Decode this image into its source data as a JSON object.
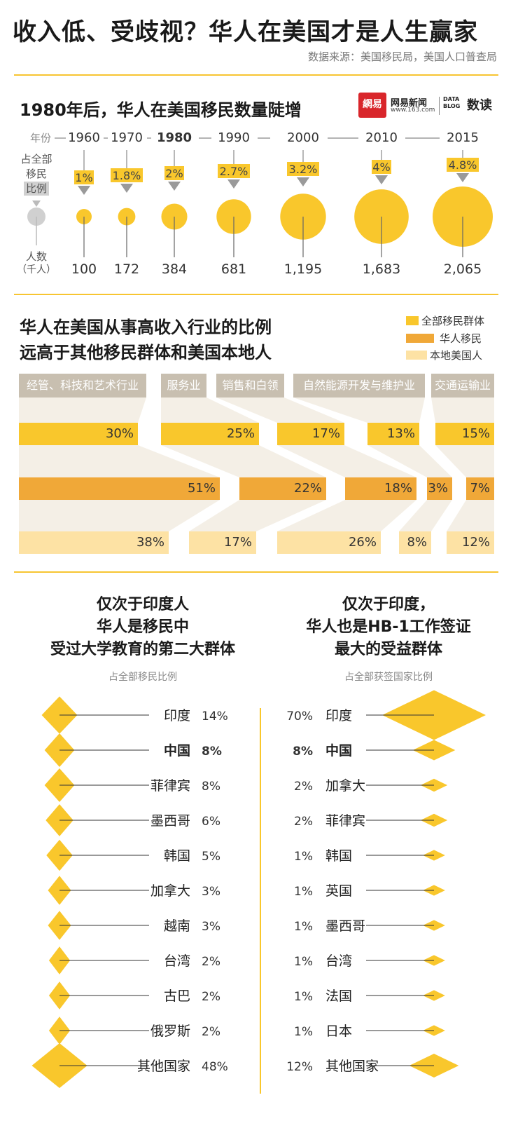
{
  "title": "收入低、受歧视？华人在美国才是人生赢家",
  "source": "数据来源：美国移民局，美国人口普查局",
  "logo": {
    "badge": "網易",
    "name": "网易新闻",
    "url": "www.163.com",
    "datablog": "DATA BLOG",
    "brand": "数读"
  },
  "colors": {
    "yellow": "#f9c72c",
    "orange": "#f0a838",
    "light": "#fde2a4",
    "gray": "#d0d0d0",
    "category_bg": "#c8bfb0",
    "flow_bg": "#f4efe6"
  },
  "section1": {
    "title": "1980年后，华人在美国移民数量陡增",
    "label_year": "年份",
    "label_share": [
      "占全部",
      "移民",
      "比例"
    ],
    "label_count": [
      "人数",
      "（千人）"
    ]
  },
  "section2": {
    "title_lines": [
      "华人在美国从事高收入行业的比例",
      "远高于其他移民群体和美国本地人"
    ],
    "legend": [
      "全部移民群体",
      "华人移民",
      "本地美国人"
    ]
  },
  "section3": {
    "left": {
      "title_lines": [
        "仅次于印度人",
        "华人是移民中",
        "受过大学教育的第二大群体"
      ],
      "note": "占全部移民比例"
    },
    "right": {
      "title_lines": [
        "仅次于印度，",
        "华人也是HB-1工作签证",
        "最大的受益群体"
      ],
      "note": "占全部获签国家比例"
    }
  },
  "chart_data": [
    {
      "type": "bubble",
      "title": "1980年后，华人在美国移民数量陡增",
      "x": [
        "1960",
        "1970",
        "1980",
        "1990",
        "2000",
        "2010",
        "2015"
      ],
      "x_display": [
        "1960",
        "1970",
        "1980",
        "1990",
        "2000",
        "2010",
        "2015"
      ],
      "share_percent": [
        1,
        1.8,
        2,
        2.7,
        3.2,
        4,
        4.8
      ],
      "share_labels": [
        "1%",
        "1.8%",
        "2%",
        "2.7%",
        "3.2%",
        "4%",
        "4.8%"
      ],
      "population_thousands": [
        100,
        172,
        384,
        681,
        1195,
        1683,
        2065
      ],
      "population_labels": [
        "100",
        "172",
        "384",
        "681",
        "1,195",
        "1,683",
        "2,065"
      ],
      "highlight": "1980"
    },
    {
      "type": "bar",
      "title": "华人在美国从事高收入行业的比例远高于其他移民群体和美国本地人",
      "categories": [
        "经管、科技和艺术行业",
        "服务业",
        "销售和白领",
        "自然能源开发与维护业",
        "交通运输业"
      ],
      "series": [
        {
          "name": "全部移民群体",
          "values": [
            30,
            25,
            17,
            13,
            15
          ],
          "labels": [
            "30%",
            "25%",
            "17%",
            "13%",
            "15%"
          ]
        },
        {
          "name": "华人移民",
          "values": [
            51,
            22,
            18,
            3,
            7
          ],
          "labels": [
            "51%",
            "22%",
            "18%",
            "3%",
            "7%"
          ]
        },
        {
          "name": "本地美国人",
          "values": [
            38,
            17,
            26,
            8,
            12
          ],
          "labels": [
            "38%",
            "17%",
            "26%",
            "8%",
            "12%"
          ]
        }
      ]
    },
    {
      "type": "bar",
      "title": "仅次于印度人 华人是移民中 受过大学教育的第二大群体",
      "subtitle": "占全部移民比例",
      "categories": [
        "印度",
        "中国",
        "菲律宾",
        "墨西哥",
        "韩国",
        "加拿大",
        "越南",
        "台湾",
        "古巴",
        "俄罗斯",
        "其他国家"
      ],
      "values": [
        14,
        8,
        8,
        6,
        5,
        3,
        3,
        2,
        2,
        2,
        48
      ],
      "labels": [
        "14%",
        "8%",
        "8%",
        "6%",
        "5%",
        "3%",
        "3%",
        "2%",
        "2%",
        "2%",
        "48%"
      ],
      "highlight": "中国"
    },
    {
      "type": "bar",
      "title": "仅次于印度， 华人也是HB-1工作签证 最大的受益群体",
      "subtitle": "占全部获签国家比例",
      "categories": [
        "印度",
        "中国",
        "加拿大",
        "菲律宾",
        "韩国",
        "英国",
        "墨西哥",
        "台湾",
        "法国",
        "日本",
        "其他国家"
      ],
      "values": [
        70,
        8,
        2,
        2,
        1,
        1,
        1,
        1,
        1,
        1,
        12
      ],
      "labels": [
        "70%",
        "8%",
        "2%",
        "2%",
        "1%",
        "1%",
        "1%",
        "1%",
        "1%",
        "1%",
        "12%"
      ],
      "highlight": "中国"
    }
  ]
}
